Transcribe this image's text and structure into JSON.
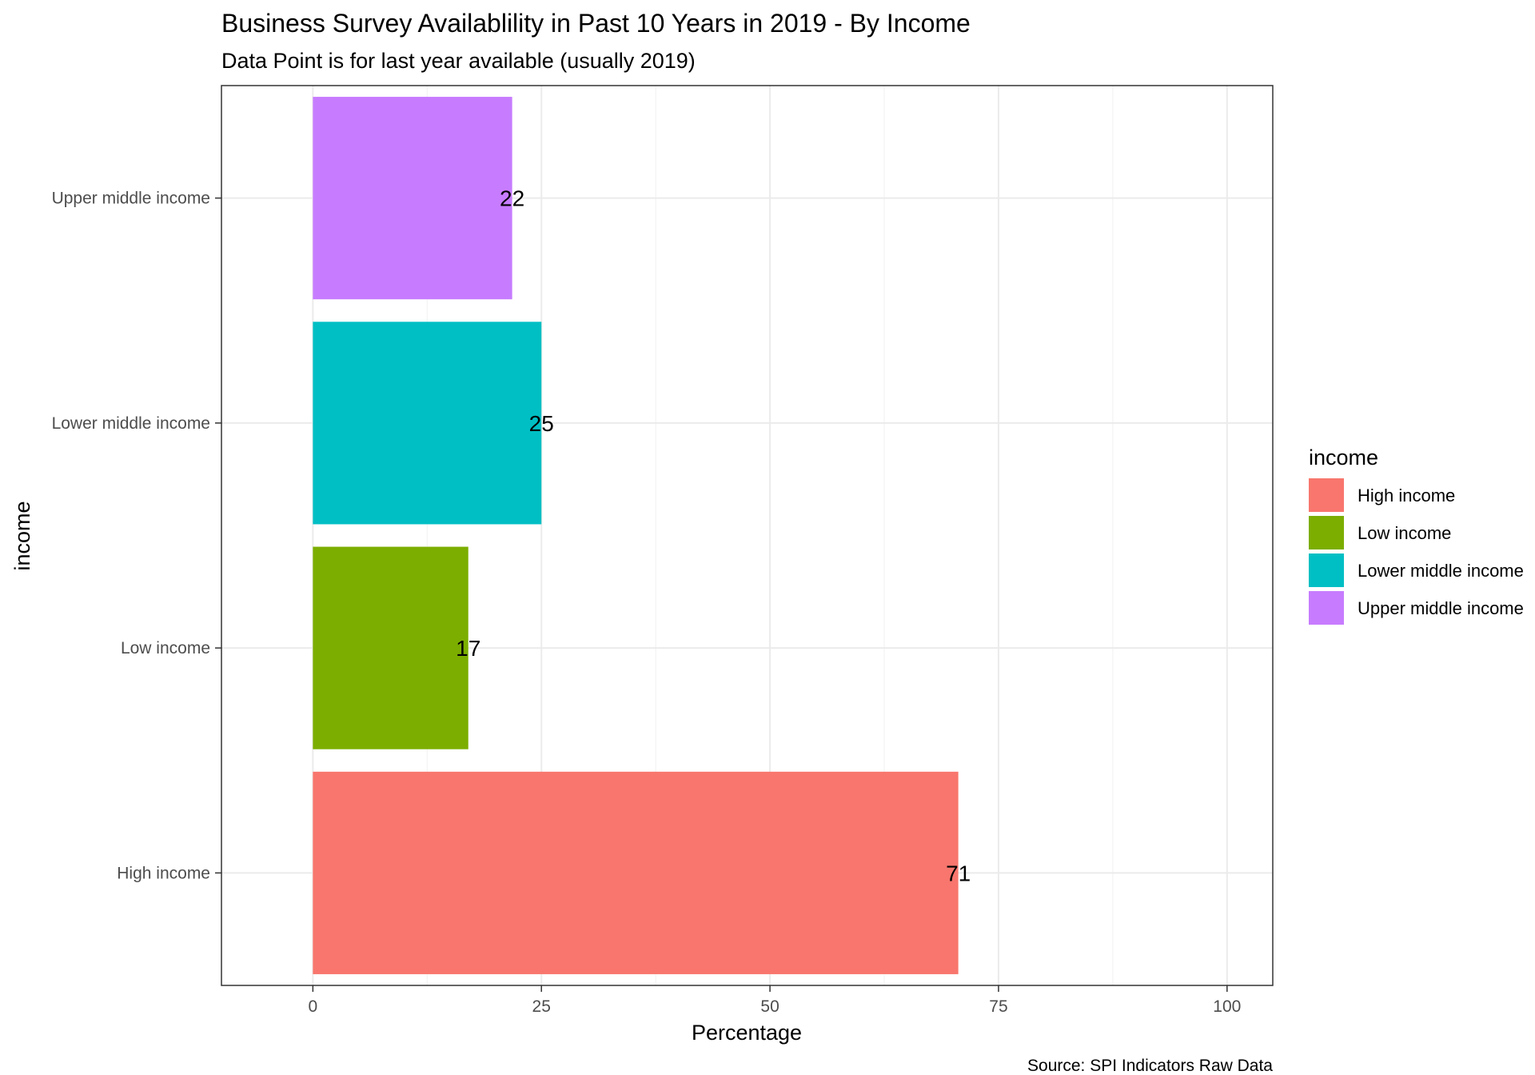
{
  "chart_data": {
    "type": "bar",
    "orientation": "horizontal",
    "title": "Business Survey Availablility in Past 10 Years in 2019 - By Income",
    "subtitle": "Data Point is for last year available (usually 2019)",
    "xlabel": "Percentage",
    "ylabel": "income",
    "caption": "Source: SPI Indicators Raw Data",
    "xlim": [
      -10,
      105
    ],
    "xticks": [
      "0",
      "25",
      "50",
      "75",
      "100"
    ],
    "grid": true,
    "legend": {
      "title": "income",
      "placement": "right",
      "entries": [
        {
          "label": "High income",
          "color": "#F8766D"
        },
        {
          "label": "Low income",
          "color": "#7CAE00"
        },
        {
          "label": "Lower middle income",
          "color": "#00BFC4"
        },
        {
          "label": "Upper middle income",
          "color": "#C77CFF"
        }
      ]
    },
    "categories": [
      "High income",
      "Low income",
      "Lower middle income",
      "Upper middle income"
    ],
    "values": [
      70.6,
      17,
      25,
      21.8
    ],
    "data_labels": [
      "71",
      "17",
      "25",
      "22"
    ],
    "colors": [
      "#F8766D",
      "#7CAE00",
      "#00BFC4",
      "#C77CFF"
    ]
  }
}
